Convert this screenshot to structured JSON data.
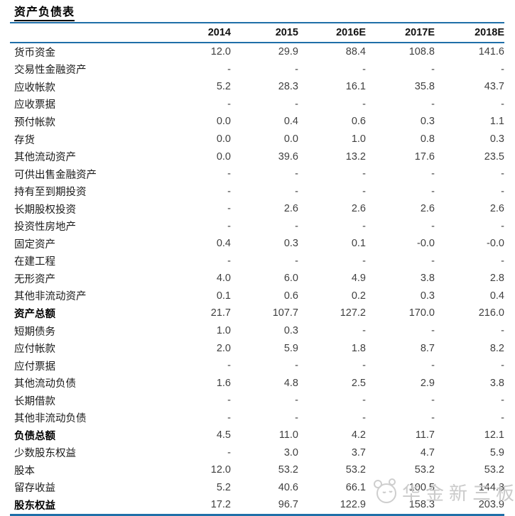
{
  "page": {
    "title": "资产负债表"
  },
  "table": {
    "columns": [
      "2014",
      "2015",
      "2016E",
      "2017E",
      "2018E"
    ],
    "rows": [
      {
        "label": "货币资金",
        "values": [
          "12.0",
          "29.9",
          "88.4",
          "108.8",
          "141.6"
        ],
        "bold": false
      },
      {
        "label": "交易性金融资产",
        "values": [
          "-",
          "-",
          "-",
          "-",
          "-"
        ],
        "bold": false
      },
      {
        "label": "应收帐款",
        "values": [
          "5.2",
          "28.3",
          "16.1",
          "35.8",
          "43.7"
        ],
        "bold": false
      },
      {
        "label": "应收票据",
        "values": [
          "-",
          "-",
          "-",
          "-",
          "-"
        ],
        "bold": false
      },
      {
        "label": "预付帐款",
        "values": [
          "0.0",
          "0.4",
          "0.6",
          "0.3",
          "1.1"
        ],
        "bold": false
      },
      {
        "label": "存货",
        "values": [
          "0.0",
          "0.0",
          "1.0",
          "0.8",
          "0.3"
        ],
        "bold": false
      },
      {
        "label": "其他流动资产",
        "values": [
          "0.0",
          "39.6",
          "13.2",
          "17.6",
          "23.5"
        ],
        "bold": false
      },
      {
        "label": "可供出售金融资产",
        "values": [
          "-",
          "-",
          "-",
          "-",
          "-"
        ],
        "bold": false
      },
      {
        "label": "持有至到期投资",
        "values": [
          "-",
          "-",
          "-",
          "-",
          "-"
        ],
        "bold": false
      },
      {
        "label": "长期股权投资",
        "values": [
          "-",
          "2.6",
          "2.6",
          "2.6",
          "2.6"
        ],
        "bold": false
      },
      {
        "label": "投资性房地产",
        "values": [
          "-",
          "-",
          "-",
          "-",
          "-"
        ],
        "bold": false
      },
      {
        "label": "固定资产",
        "values": [
          "0.4",
          "0.3",
          "0.1",
          "-0.0",
          "-0.0"
        ],
        "bold": false
      },
      {
        "label": "在建工程",
        "values": [
          "-",
          "-",
          "-",
          "-",
          "-"
        ],
        "bold": false
      },
      {
        "label": "无形资产",
        "values": [
          "4.0",
          "6.0",
          "4.9",
          "3.8",
          "2.8"
        ],
        "bold": false
      },
      {
        "label": "其他非流动资产",
        "values": [
          "0.1",
          "0.6",
          "0.2",
          "0.3",
          "0.4"
        ],
        "bold": false
      },
      {
        "label": "资产总额",
        "values": [
          "21.7",
          "107.7",
          "127.2",
          "170.0",
          "216.0"
        ],
        "bold": true
      },
      {
        "label": "短期债务",
        "values": [
          "1.0",
          "0.3",
          "-",
          "-",
          "-"
        ],
        "bold": false
      },
      {
        "label": "应付帐款",
        "values": [
          "2.0",
          "5.9",
          "1.8",
          "8.7",
          "8.2"
        ],
        "bold": false
      },
      {
        "label": "应付票据",
        "values": [
          "-",
          "-",
          "-",
          "-",
          "-"
        ],
        "bold": false
      },
      {
        "label": "其他流动负债",
        "values": [
          "1.6",
          "4.8",
          "2.5",
          "2.9",
          "3.8"
        ],
        "bold": false
      },
      {
        "label": "长期借款",
        "values": [
          "-",
          "-",
          "-",
          "-",
          "-"
        ],
        "bold": false
      },
      {
        "label": "其他非流动负债",
        "values": [
          "-",
          "-",
          "-",
          "-",
          "-"
        ],
        "bold": false
      },
      {
        "label": "负债总额",
        "values": [
          "4.5",
          "11.0",
          "4.2",
          "11.7",
          "12.1"
        ],
        "bold": true
      },
      {
        "label": "少数股东权益",
        "values": [
          "-",
          "3.0",
          "3.7",
          "4.7",
          "5.9"
        ],
        "bold": false
      },
      {
        "label": "股本",
        "values": [
          "12.0",
          "53.2",
          "53.2",
          "53.2",
          "53.2"
        ],
        "bold": false
      },
      {
        "label": "留存收益",
        "values": [
          "5.2",
          "40.6",
          "66.1",
          "100.5",
          "144.8"
        ],
        "bold": false
      },
      {
        "label": "股东权益",
        "values": [
          "17.2",
          "96.7",
          "122.9",
          "158.3",
          "203.9"
        ],
        "bold": true
      }
    ]
  },
  "watermark": {
    "text": "华金新三板",
    "logo": "mascot-face-icon"
  },
  "colors": {
    "accent_blue": "#1F6FA8",
    "watermark_gray": "#C8C8C8",
    "title_black": "#000000"
  }
}
